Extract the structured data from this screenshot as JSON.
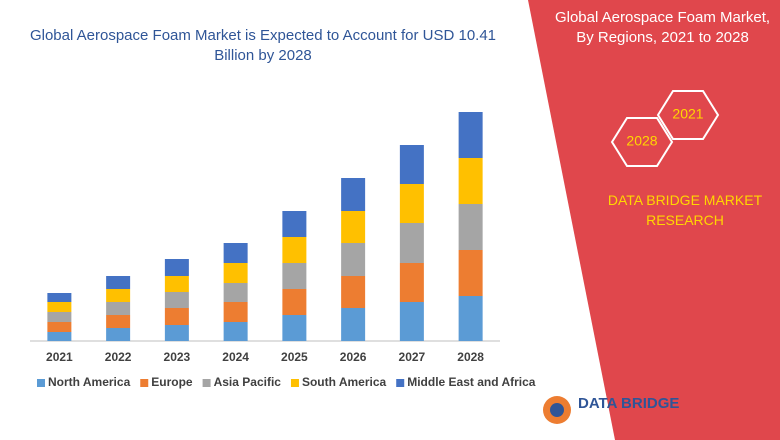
{
  "chart_data": {
    "type": "bar",
    "stacked": true,
    "title": "Global Aerospace Foam Market is Expected to Account for USD 10.41 Billion by 2028",
    "categories": [
      "2021",
      "2022",
      "2023",
      "2024",
      "2025",
      "2026",
      "2027",
      "2028"
    ],
    "series": [
      {
        "name": "North America",
        "color": "#5b9bd5",
        "values": [
          9,
          13,
          16,
          19,
          26,
          33,
          39,
          45
        ]
      },
      {
        "name": "Europe",
        "color": "#ed7d31",
        "values": [
          10,
          13,
          17,
          20,
          26,
          32,
          39,
          46
        ]
      },
      {
        "name": "Asia Pacific",
        "color": "#a5a5a5",
        "values": [
          10,
          13,
          16,
          19,
          26,
          33,
          40,
          46
        ]
      },
      {
        "name": "South America",
        "color": "#ffc000",
        "values": [
          10,
          13,
          16,
          20,
          26,
          32,
          39,
          46
        ]
      },
      {
        "name": "Middle East and Africa",
        "color": "#4472c4",
        "values": [
          9,
          13,
          17,
          20,
          26,
          33,
          39,
          46
        ]
      }
    ],
    "ylim": [
      0,
      240
    ]
  },
  "panel": {
    "title": "Global Aerospace Foam Market, By Regions, 2021 to 2028",
    "hexagons": [
      "2028",
      "2021"
    ],
    "brand": "DATA BRIDGE MARKET RESEARCH"
  },
  "logo": {
    "text": "DATA BRIDGE"
  }
}
